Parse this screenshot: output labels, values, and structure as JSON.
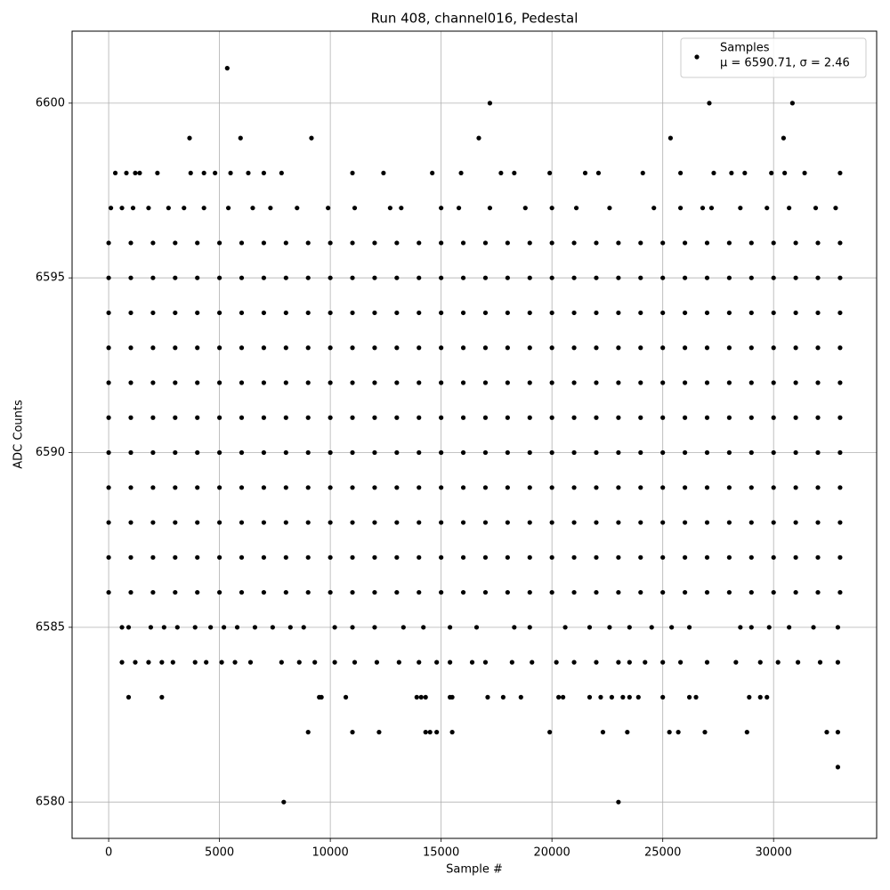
{
  "chart_data": {
    "type": "scatter",
    "title": "Run 408, channel016, Pedestal",
    "xlabel": "Sample #",
    "ylabel": "ADC Counts",
    "xlim": [
      -1650,
      34650
    ],
    "ylim": [
      6578.96,
      6602.06
    ],
    "xticks": [
      0,
      5000,
      10000,
      15000,
      20000,
      25000,
      30000
    ],
    "yticks": [
      6580,
      6585,
      6590,
      6595,
      6600
    ],
    "grid": true,
    "legend": "upper right",
    "legend_stats": "μ = 6590.71, σ = 2.46",
    "series": [
      {
        "name": "Samples",
        "color": "#000000",
        "x": [
          5350,
          7900,
          23000,
          32900,
          17200,
          27100,
          30850,
          3650,
          5950,
          9150,
          16700,
          25350,
          30450,
          9000,
          11000,
          12200,
          14300,
          14500,
          14800,
          15500,
          19900,
          22300,
          23400,
          25300,
          25700,
          26900,
          28800,
          32400,
          32900,
          900,
          2400,
          9500,
          9600,
          10700,
          13900,
          14100,
          14300,
          15400,
          15500,
          17100,
          17800,
          18600,
          20300,
          20500,
          21700,
          22200,
          22700,
          23200,
          23500,
          23900,
          25000,
          26200,
          26500,
          28900,
          29400,
          29700,
          300,
          800,
          1200,
          1400,
          2200,
          3700,
          4300,
          4800,
          5500,
          6300,
          7000,
          7800,
          11000,
          12400,
          14600,
          15900,
          17700,
          18300,
          19900,
          21500,
          22100,
          24100,
          25800,
          27300,
          28100,
          28700,
          29900,
          30500,
          31400,
          33000,
          100,
          600,
          1100,
          1800,
          2700,
          3400,
          4300,
          5400,
          6500,
          7300,
          8500,
          9900,
          11100,
          12700,
          13200,
          15000,
          15800,
          17200,
          18800,
          20000,
          21100,
          22600,
          24600,
          25800,
          26800,
          27200,
          28500,
          29700,
          30700,
          31900,
          32800,
          600,
          900,
          1900,
          2500,
          3100,
          3900,
          4600,
          5200,
          5800,
          6600,
          7400,
          8200,
          8800,
          10200,
          11000,
          12000,
          13300,
          14200,
          15400,
          16600,
          18300,
          19000,
          20600,
          21700,
          22600,
          23500,
          24500,
          25400,
          26200,
          28500,
          29000,
          29800,
          30700,
          31800,
          32900,
          600,
          1200,
          1800,
          2400,
          2900,
          3900,
          4400,
          5100,
          5700,
          6400,
          7800,
          8600,
          9300,
          10200,
          11100,
          12100,
          13100,
          14000,
          14800,
          15400,
          16400,
          17000,
          18200,
          19100,
          20200,
          21000,
          22000,
          23000,
          23500,
          24200,
          25000,
          25800,
          27000,
          28300,
          29400,
          30200,
          31100,
          32100,
          32900,
          0,
          1000,
          2000,
          3000,
          4000,
          5000,
          6000,
          7000,
          8000,
          9000,
          10000,
          11000,
          12000,
          13000,
          14000,
          15000,
          16000,
          17000,
          18000,
          19000,
          20000,
          21000,
          22000,
          23000,
          24000,
          25000,
          26000,
          27000,
          28000,
          29000,
          30000,
          31000,
          32000,
          33000,
          0,
          1000,
          2000,
          3000,
          4000,
          5000,
          6000,
          7000,
          8000,
          9000,
          10000,
          11000,
          12000,
          13000,
          14000,
          15000,
          16000,
          17000,
          18000,
          19000,
          20000,
          21000,
          22000,
          23000,
          24000,
          25000,
          26000,
          27000,
          28000,
          29000,
          30000,
          31000,
          32000,
          33000,
          0,
          1000,
          2000,
          3000,
          4000,
          5000,
          6000,
          7000,
          8000,
          9000,
          10000,
          11000,
          12000,
          13000,
          14000,
          15000,
          16000,
          17000,
          18000,
          19000,
          20000,
          21000,
          22000,
          23000,
          24000,
          25000,
          26000,
          27000,
          28000,
          29000,
          30000,
          31000,
          32000,
          33000,
          0,
          1000,
          2000,
          3000,
          4000,
          5000,
          6000,
          7000,
          8000,
          9000,
          10000,
          11000,
          12000,
          13000,
          14000,
          15000,
          16000,
          17000,
          18000,
          19000,
          20000,
          21000,
          22000,
          23000,
          24000,
          25000,
          26000,
          27000,
          28000,
          29000,
          30000,
          31000,
          32000,
          33000,
          0,
          1000,
          2000,
          3000,
          4000,
          5000,
          6000,
          7000,
          8000,
          9000,
          10000,
          11000,
          12000,
          13000,
          14000,
          15000,
          16000,
          17000,
          18000,
          19000,
          20000,
          21000,
          22000,
          23000,
          24000,
          25000,
          26000,
          27000,
          28000,
          29000,
          30000,
          31000,
          32000,
          33000,
          0,
          1000,
          2000,
          3000,
          4000,
          5000,
          6000,
          7000,
          8000,
          9000,
          10000,
          11000,
          12000,
          13000,
          14000,
          15000,
          16000,
          17000,
          18000,
          19000,
          20000,
          21000,
          22000,
          23000,
          24000,
          25000,
          26000,
          27000,
          28000,
          29000,
          30000,
          31000,
          32000,
          33000,
          0,
          1000,
          2000,
          3000,
          4000,
          5000,
          6000,
          7000,
          8000,
          9000,
          10000,
          11000,
          12000,
          13000,
          14000,
          15000,
          16000,
          17000,
          18000,
          19000,
          20000,
          21000,
          22000,
          23000,
          24000,
          25000,
          26000,
          27000,
          28000,
          29000,
          30000,
          31000,
          32000,
          33000,
          0,
          1000,
          2000,
          3000,
          4000,
          5000,
          6000,
          7000,
          8000,
          9000,
          10000,
          11000,
          12000,
          13000,
          14000,
          15000,
          16000,
          17000,
          18000,
          19000,
          20000,
          21000,
          22000,
          23000,
          24000,
          25000,
          26000,
          27000,
          28000,
          29000,
          30000,
          31000,
          32000,
          33000,
          0,
          1000,
          2000,
          3000,
          4000,
          5000,
          6000,
          7000,
          8000,
          9000,
          10000,
          11000,
          12000,
          13000,
          14000,
          15000,
          16000,
          17000,
          18000,
          19000,
          20000,
          21000,
          22000,
          23000,
          24000,
          25000,
          26000,
          27000,
          28000,
          29000,
          30000,
          31000,
          32000,
          33000,
          0,
          1000,
          2000,
          3000,
          4000,
          5000,
          6000,
          7000,
          8000,
          9000,
          10000,
          11000,
          12000,
          13000,
          14000,
          15000,
          16000,
          17000,
          18000,
          19000,
          20000,
          21000,
          22000,
          23000,
          24000,
          25000,
          26000,
          27000,
          28000,
          29000,
          30000,
          31000,
          32000,
          33000,
          0,
          1000,
          2000,
          3000,
          4000,
          5000,
          6000,
          7000,
          8000,
          9000,
          10000,
          11000,
          12000,
          13000,
          14000,
          15000,
          16000,
          17000,
          18000,
          19000,
          20000,
          21000,
          22000,
          23000,
          24000,
          25000,
          26000,
          27000,
          28000,
          29000,
          30000,
          31000,
          32000,
          33000
        ],
        "values": [
          6601,
          6580,
          6580,
          6581,
          6600,
          6600,
          6600,
          6599,
          6599,
          6599,
          6599,
          6599,
          6599,
          6582,
          6582,
          6582,
          6582,
          6582,
          6582,
          6582,
          6582,
          6582,
          6582,
          6582,
          6582,
          6582,
          6582,
          6582,
          6582,
          6583,
          6583,
          6583,
          6583,
          6583,
          6583,
          6583,
          6583,
          6583,
          6583,
          6583,
          6583,
          6583,
          6583,
          6583,
          6583,
          6583,
          6583,
          6583,
          6583,
          6583,
          6583,
          6583,
          6583,
          6583,
          6583,
          6583,
          6598,
          6598,
          6598,
          6598,
          6598,
          6598,
          6598,
          6598,
          6598,
          6598,
          6598,
          6598,
          6598,
          6598,
          6598,
          6598,
          6598,
          6598,
          6598,
          6598,
          6598,
          6598,
          6598,
          6598,
          6598,
          6598,
          6598,
          6598,
          6598,
          6598,
          6597,
          6597,
          6597,
          6597,
          6597,
          6597,
          6597,
          6597,
          6597,
          6597,
          6597,
          6597,
          6597,
          6597,
          6597,
          6597,
          6597,
          6597,
          6597,
          6597,
          6597,
          6597,
          6597,
          6597,
          6597,
          6597,
          6597,
          6597,
          6597,
          6597,
          6597,
          6585,
          6585,
          6585,
          6585,
          6585,
          6585,
          6585,
          6585,
          6585,
          6585,
          6585,
          6585,
          6585,
          6585,
          6585,
          6585,
          6585,
          6585,
          6585,
          6585,
          6585,
          6585,
          6585,
          6585,
          6585,
          6585,
          6585,
          6585,
          6585,
          6585,
          6585,
          6585,
          6585,
          6585,
          6585,
          6584,
          6584,
          6584,
          6584,
          6584,
          6584,
          6584,
          6584,
          6584,
          6584,
          6584,
          6584,
          6584,
          6584,
          6584,
          6584,
          6584,
          6584,
          6584,
          6584,
          6584,
          6584,
          6584,
          6584,
          6584,
          6584,
          6584,
          6584,
          6584,
          6584,
          6584,
          6584,
          6584,
          6584,
          6584,
          6584,
          6584,
          6584,
          6584,
          6586,
          6586,
          6586,
          6586,
          6586,
          6586,
          6586,
          6586,
          6586,
          6586,
          6586,
          6586,
          6586,
          6586,
          6586,
          6586,
          6586,
          6586,
          6586,
          6586,
          6586,
          6586,
          6586,
          6586,
          6586,
          6586,
          6586,
          6586,
          6586,
          6586,
          6586,
          6586,
          6586,
          6586,
          6587,
          6587,
          6587,
          6587,
          6587,
          6587,
          6587,
          6587,
          6587,
          6587,
          6587,
          6587,
          6587,
          6587,
          6587,
          6587,
          6587,
          6587,
          6587,
          6587,
          6587,
          6587,
          6587,
          6587,
          6587,
          6587,
          6587,
          6587,
          6587,
          6587,
          6587,
          6587,
          6587,
          6587,
          6588,
          6588,
          6588,
          6588,
          6588,
          6588,
          6588,
          6588,
          6588,
          6588,
          6588,
          6588,
          6588,
          6588,
          6588,
          6588,
          6588,
          6588,
          6588,
          6588,
          6588,
          6588,
          6588,
          6588,
          6588,
          6588,
          6588,
          6588,
          6588,
          6588,
          6588,
          6588,
          6588,
          6588,
          6589,
          6589,
          6589,
          6589,
          6589,
          6589,
          6589,
          6589,
          6589,
          6589,
          6589,
          6589,
          6589,
          6589,
          6589,
          6589,
          6589,
          6589,
          6589,
          6589,
          6589,
          6589,
          6589,
          6589,
          6589,
          6589,
          6589,
          6589,
          6589,
          6589,
          6589,
          6589,
          6589,
          6589,
          6590,
          6590,
          6590,
          6590,
          6590,
          6590,
          6590,
          6590,
          6590,
          6590,
          6590,
          6590,
          6590,
          6590,
          6590,
          6590,
          6590,
          6590,
          6590,
          6590,
          6590,
          6590,
          6590,
          6590,
          6590,
          6590,
          6590,
          6590,
          6590,
          6590,
          6590,
          6590,
          6590,
          6590,
          6591,
          6591,
          6591,
          6591,
          6591,
          6591,
          6591,
          6591,
          6591,
          6591,
          6591,
          6591,
          6591,
          6591,
          6591,
          6591,
          6591,
          6591,
          6591,
          6591,
          6591,
          6591,
          6591,
          6591,
          6591,
          6591,
          6591,
          6591,
          6591,
          6591,
          6591,
          6591,
          6591,
          6591,
          6592,
          6592,
          6592,
          6592,
          6592,
          6592,
          6592,
          6592,
          6592,
          6592,
          6592,
          6592,
          6592,
          6592,
          6592,
          6592,
          6592,
          6592,
          6592,
          6592,
          6592,
          6592,
          6592,
          6592,
          6592,
          6592,
          6592,
          6592,
          6592,
          6592,
          6592,
          6592,
          6592,
          6592,
          6593,
          6593,
          6593,
          6593,
          6593,
          6593,
          6593,
          6593,
          6593,
          6593,
          6593,
          6593,
          6593,
          6593,
          6593,
          6593,
          6593,
          6593,
          6593,
          6593,
          6593,
          6593,
          6593,
          6593,
          6593,
          6593,
          6593,
          6593,
          6593,
          6593,
          6593,
          6593,
          6593,
          6593,
          6594,
          6594,
          6594,
          6594,
          6594,
          6594,
          6594,
          6594,
          6594,
          6594,
          6594,
          6594,
          6594,
          6594,
          6594,
          6594,
          6594,
          6594,
          6594,
          6594,
          6594,
          6594,
          6594,
          6594,
          6594,
          6594,
          6594,
          6594,
          6594,
          6594,
          6594,
          6594,
          6594,
          6594,
          6595,
          6595,
          6595,
          6595,
          6595,
          6595,
          6595,
          6595,
          6595,
          6595,
          6595,
          6595,
          6595,
          6595,
          6595,
          6595,
          6595,
          6595,
          6595,
          6595,
          6595,
          6595,
          6595,
          6595,
          6595,
          6595,
          6595,
          6595,
          6595,
          6595,
          6595,
          6595,
          6595,
          6595,
          6596,
          6596,
          6596,
          6596,
          6596,
          6596,
          6596,
          6596,
          6596,
          6596,
          6596,
          6596,
          6596,
          6596,
          6596,
          6596,
          6596,
          6596,
          6596,
          6596,
          6596,
          6596,
          6596,
          6596,
          6596,
          6596,
          6596,
          6596,
          6596,
          6596,
          6596,
          6596,
          6596,
          6596
        ]
      }
    ]
  }
}
